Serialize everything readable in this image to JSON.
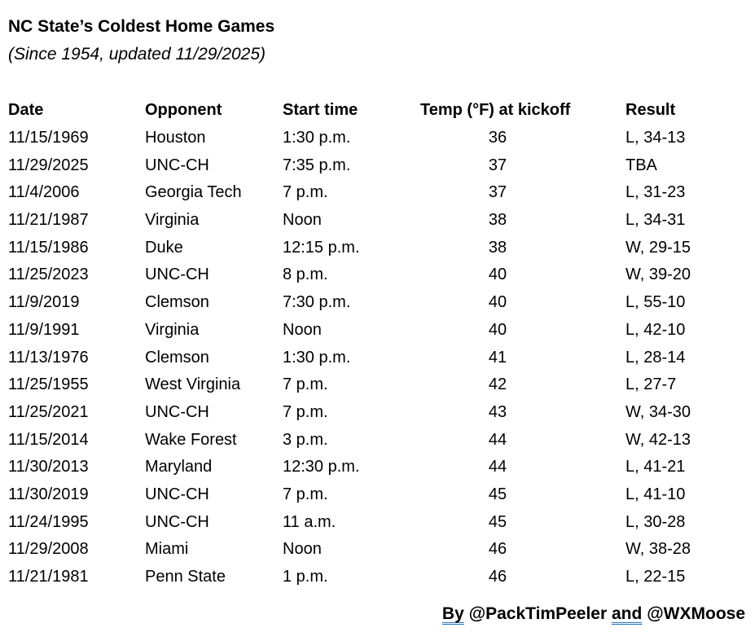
{
  "title": "NC State’s Coldest Home Games",
  "subtitle": "(Since 1954, updated 11/29/2025)",
  "table": {
    "columns": [
      "Date",
      "Opponent",
      "Start time",
      "Temp (°F) at kickoff",
      "Result"
    ],
    "rows": [
      [
        "11/15/1969",
        "Houston",
        "1:30 p.m.",
        "36",
        "L, 34-13"
      ],
      [
        "11/29/2025",
        "UNC-CH",
        "7:35 p.m.",
        "37",
        "TBA"
      ],
      [
        "11/4/2006",
        "Georgia Tech",
        "7 p.m.",
        "37",
        "L, 31-23"
      ],
      [
        "11/21/1987",
        "Virginia",
        "Noon",
        "38",
        "L, 34-31"
      ],
      [
        "11/15/1986",
        "Duke",
        "12:15 p.m.",
        "38",
        "W, 29-15"
      ],
      [
        "11/25/2023",
        "UNC-CH",
        "8 p.m.",
        "40",
        "W, 39-20"
      ],
      [
        "11/9/2019",
        "Clemson",
        "7:30 p.m.",
        "40",
        "L, 55-10"
      ],
      [
        "11/9/1991",
        "Virginia",
        "Noon",
        "40",
        "L, 42-10"
      ],
      [
        "11/13/1976",
        "Clemson",
        "1:30 p.m.",
        "41",
        "L, 28-14"
      ],
      [
        "11/25/1955",
        "West Virginia",
        "7 p.m.",
        "42",
        "L, 27-7"
      ],
      [
        "11/25/2021",
        "UNC-CH",
        "7 p.m.",
        "43",
        "W, 34-30"
      ],
      [
        "11/15/2014",
        "Wake Forest",
        "3 p.m.",
        "44",
        "W, 42-13"
      ],
      [
        "11/30/2013",
        "Maryland",
        "12:30 p.m.",
        "44",
        "L, 41-21"
      ],
      [
        "11/30/2019",
        "UNC-CH",
        "7 p.m.",
        "45",
        "L, 41-10"
      ],
      [
        "11/24/1995",
        "UNC-CH",
        "11 a.m.",
        "45",
        "L, 30-28"
      ],
      [
        "11/29/2008",
        "Miami",
        "Noon",
        "46",
        "W, 38-28"
      ],
      [
        "11/21/1981",
        "Penn State",
        "1 p.m.",
        "46",
        "L, 22-15"
      ]
    ]
  },
  "footer": {
    "by_label": "By",
    "author1": "@PackTimPeeler",
    "and_label": "and",
    "author2": "@WXMoose"
  },
  "colors": {
    "background": "#ffffff",
    "text": "#000000",
    "grammar_underline_blue": "#2e74b5"
  }
}
